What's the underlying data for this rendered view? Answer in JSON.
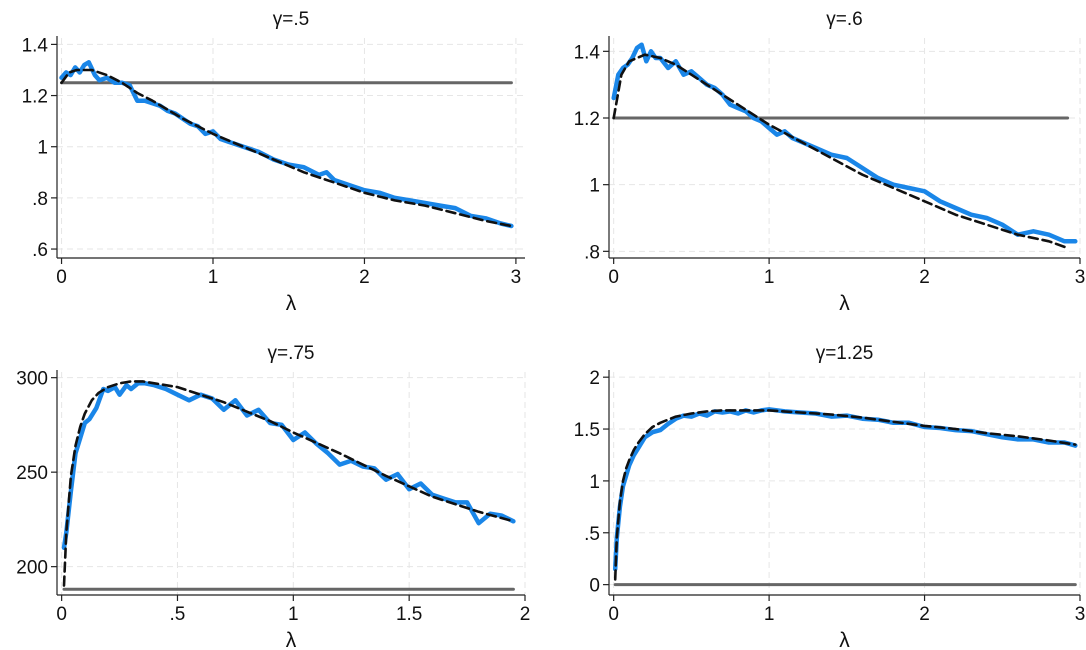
{
  "chart_data": [
    {
      "type": "line",
      "title": "γ=.5",
      "xlabel": "λ",
      "ylabel": "",
      "xlim": [
        -0.03,
        3.06
      ],
      "ylim": [
        0.565,
        1.425
      ],
      "xticks": [
        0,
        1,
        2,
        3
      ],
      "xtick_labels": [
        "0",
        "1",
        "2",
        "3"
      ],
      "yticks": [
        0.6,
        0.8,
        1.0,
        1.2,
        1.4
      ],
      "ytick_labels": [
        ".6",
        ".8",
        "1",
        "1.2",
        "1.4"
      ],
      "grid": true,
      "series": [
        {
          "role": "simulated",
          "color": "#1a86e8",
          "style": "solid",
          "x": [
            0,
            0.03,
            0.06,
            0.09,
            0.12,
            0.15,
            0.18,
            0.22,
            0.25,
            0.3,
            0.35,
            0.4,
            0.45,
            0.5,
            0.55,
            0.6,
            0.65,
            0.7,
            0.75,
            0.8,
            0.85,
            0.9,
            0.95,
            1.0,
            1.05,
            1.1,
            1.2,
            1.3,
            1.4,
            1.5,
            1.6,
            1.7,
            1.75,
            1.8,
            1.9,
            2.0,
            2.1,
            2.2,
            2.3,
            2.4,
            2.5,
            2.6,
            2.7,
            2.8,
            2.9,
            2.97
          ],
          "y": [
            1.27,
            1.29,
            1.28,
            1.31,
            1.29,
            1.32,
            1.33,
            1.28,
            1.26,
            1.27,
            1.25,
            1.25,
            1.24,
            1.18,
            1.18,
            1.17,
            1.16,
            1.14,
            1.13,
            1.11,
            1.09,
            1.08,
            1.05,
            1.06,
            1.03,
            1.02,
            1.0,
            0.98,
            0.95,
            0.93,
            0.92,
            0.89,
            0.9,
            0.87,
            0.85,
            0.83,
            0.82,
            0.8,
            0.79,
            0.78,
            0.77,
            0.76,
            0.73,
            0.72,
            0.7,
            0.69
          ]
        },
        {
          "role": "fit",
          "color": "#111111",
          "style": "dashed",
          "x": [
            0,
            0.05,
            0.1,
            0.15,
            0.2,
            0.3,
            0.4,
            0.5,
            0.6,
            0.8,
            1.0,
            1.2,
            1.4,
            1.6,
            1.8,
            2.0,
            2.2,
            2.4,
            2.6,
            2.8,
            2.97
          ],
          "y": [
            1.25,
            1.29,
            1.3,
            1.3,
            1.3,
            1.28,
            1.25,
            1.21,
            1.18,
            1.11,
            1.05,
            1.0,
            0.95,
            0.9,
            0.86,
            0.82,
            0.79,
            0.77,
            0.74,
            0.71,
            0.69
          ]
        },
        {
          "role": "baseline",
          "color": "#666666",
          "style": "solid",
          "x": [
            0,
            2.97
          ],
          "y": [
            1.25,
            1.25
          ]
        }
      ]
    },
    {
      "type": "line",
      "title": "γ=.6",
      "xlabel": "λ",
      "ylabel": "",
      "xlim": [
        -0.03,
        3.0
      ],
      "ylim": [
        0.78,
        1.44
      ],
      "xticks": [
        0,
        1,
        2,
        3
      ],
      "xtick_labels": [
        "0",
        "1",
        "2",
        "3"
      ],
      "yticks": [
        0.8,
        1.0,
        1.2,
        1.4
      ],
      "ytick_labels": [
        ".8",
        "1",
        "1.2",
        "1.4"
      ],
      "grid": true,
      "series": [
        {
          "role": "simulated",
          "color": "#1a86e8",
          "style": "solid",
          "x": [
            0,
            0.03,
            0.06,
            0.09,
            0.12,
            0.15,
            0.18,
            0.21,
            0.24,
            0.27,
            0.3,
            0.35,
            0.4,
            0.45,
            0.5,
            0.55,
            0.6,
            0.65,
            0.7,
            0.75,
            0.8,
            0.85,
            0.9,
            0.95,
            1.0,
            1.05,
            1.1,
            1.15,
            1.2,
            1.3,
            1.4,
            1.5,
            1.6,
            1.7,
            1.8,
            1.9,
            2.0,
            2.1,
            2.2,
            2.3,
            2.4,
            2.45,
            2.5,
            2.6,
            2.7,
            2.8,
            2.9,
            2.97
          ],
          "y": [
            1.26,
            1.33,
            1.35,
            1.36,
            1.38,
            1.41,
            1.42,
            1.37,
            1.4,
            1.38,
            1.38,
            1.35,
            1.37,
            1.33,
            1.34,
            1.32,
            1.3,
            1.29,
            1.27,
            1.24,
            1.23,
            1.22,
            1.2,
            1.19,
            1.17,
            1.15,
            1.16,
            1.14,
            1.13,
            1.11,
            1.09,
            1.08,
            1.05,
            1.02,
            1.0,
            0.99,
            0.98,
            0.95,
            0.93,
            0.91,
            0.9,
            0.89,
            0.88,
            0.85,
            0.86,
            0.85,
            0.83,
            0.83
          ]
        },
        {
          "role": "fit",
          "color": "#111111",
          "style": "dashed",
          "x": [
            0,
            0.05,
            0.1,
            0.15,
            0.2,
            0.3,
            0.4,
            0.5,
            0.6,
            0.8,
            1.0,
            1.2,
            1.4,
            1.6,
            1.8,
            2.0,
            2.2,
            2.4,
            2.6,
            2.8,
            2.92
          ],
          "y": [
            1.2,
            1.33,
            1.37,
            1.38,
            1.39,
            1.38,
            1.36,
            1.33,
            1.3,
            1.24,
            1.18,
            1.13,
            1.08,
            1.03,
            0.99,
            0.95,
            0.91,
            0.88,
            0.85,
            0.83,
            0.81
          ]
        },
        {
          "role": "baseline",
          "color": "#666666",
          "style": "solid",
          "x": [
            0,
            2.92
          ],
          "y": [
            1.2,
            1.2
          ]
        }
      ]
    },
    {
      "type": "line",
      "title": "γ=.75",
      "xlabel": "λ",
      "ylabel": "",
      "xlim": [
        -0.02,
        2.0
      ],
      "ylim": [
        185,
        303
      ],
      "xticks": [
        0,
        0.5,
        1,
        1.5,
        2
      ],
      "xtick_labels": [
        "0",
        ".5",
        "1",
        "1.5",
        "2"
      ],
      "yticks": [
        200,
        250,
        300
      ],
      "ytick_labels": [
        "200",
        "250",
        "300"
      ],
      "grid": true,
      "series": [
        {
          "role": "simulated",
          "color": "#1a86e8",
          "style": "solid",
          "x": [
            0.01,
            0.02,
            0.04,
            0.06,
            0.08,
            0.1,
            0.12,
            0.15,
            0.18,
            0.2,
            0.23,
            0.25,
            0.28,
            0.3,
            0.33,
            0.36,
            0.4,
            0.45,
            0.5,
            0.55,
            0.6,
            0.65,
            0.7,
            0.75,
            0.8,
            0.85,
            0.9,
            0.95,
            1.0,
            1.05,
            1.1,
            1.15,
            1.2,
            1.25,
            1.3,
            1.35,
            1.4,
            1.45,
            1.5,
            1.55,
            1.6,
            1.65,
            1.7,
            1.75,
            1.8,
            1.85,
            1.9,
            1.95
          ],
          "y": [
            210,
            218,
            240,
            260,
            268,
            276,
            278,
            284,
            294,
            293,
            295,
            291,
            296,
            294,
            297,
            297,
            296,
            294,
            291,
            288,
            291,
            289,
            283,
            288,
            280,
            283,
            276,
            275,
            267,
            271,
            265,
            260,
            254,
            256,
            253,
            252,
            246,
            249,
            241,
            244,
            238,
            236,
            234,
            234,
            223,
            228,
            227,
            224
          ]
        },
        {
          "role": "fit",
          "color": "#111111",
          "style": "dashed",
          "x": [
            0.01,
            0.02,
            0.04,
            0.06,
            0.08,
            0.1,
            0.13,
            0.16,
            0.2,
            0.25,
            0.3,
            0.35,
            0.4,
            0.5,
            0.6,
            0.7,
            0.8,
            0.9,
            1.0,
            1.2,
            1.4,
            1.6,
            1.8,
            1.95
          ],
          "y": [
            190,
            218,
            248,
            264,
            274,
            281,
            288,
            292,
            295,
            297,
            298,
            298,
            297,
            295,
            291,
            287,
            282,
            277,
            271,
            260,
            248,
            237,
            229,
            224
          ]
        },
        {
          "role": "baseline",
          "color": "#666666",
          "style": "solid",
          "x": [
            0.01,
            1.95
          ],
          "y": [
            188,
            188
          ]
        }
      ]
    },
    {
      "type": "line",
      "title": "γ=1.25",
      "xlabel": "λ",
      "ylabel": "",
      "xlim": [
        -0.03,
        3.0
      ],
      "ylim": [
        -0.1,
        2.05
      ],
      "xticks": [
        0,
        1,
        2,
        3
      ],
      "xtick_labels": [
        "0",
        "1",
        "2",
        "3"
      ],
      "yticks": [
        0,
        0.5,
        1,
        1.5,
        2
      ],
      "ytick_labels": [
        "0",
        ".5",
        "1",
        "1.5",
        "2"
      ],
      "grid": true,
      "series": [
        {
          "role": "simulated",
          "color": "#1a86e8",
          "style": "solid",
          "x": [
            0.01,
            0.02,
            0.04,
            0.06,
            0.08,
            0.1,
            0.13,
            0.16,
            0.2,
            0.25,
            0.3,
            0.35,
            0.4,
            0.45,
            0.5,
            0.55,
            0.6,
            0.65,
            0.7,
            0.75,
            0.8,
            0.85,
            0.9,
            0.95,
            1.0,
            1.1,
            1.2,
            1.3,
            1.4,
            1.5,
            1.6,
            1.7,
            1.8,
            1.9,
            2.0,
            2.1,
            2.2,
            2.3,
            2.4,
            2.5,
            2.6,
            2.7,
            2.8,
            2.9,
            2.97
          ],
          "y": [
            0.15,
            0.45,
            0.75,
            0.95,
            1.05,
            1.15,
            1.25,
            1.32,
            1.42,
            1.47,
            1.49,
            1.55,
            1.6,
            1.63,
            1.62,
            1.65,
            1.63,
            1.67,
            1.66,
            1.67,
            1.65,
            1.68,
            1.66,
            1.68,
            1.69,
            1.67,
            1.66,
            1.65,
            1.62,
            1.63,
            1.6,
            1.59,
            1.56,
            1.56,
            1.52,
            1.51,
            1.49,
            1.48,
            1.45,
            1.42,
            1.4,
            1.4,
            1.37,
            1.37,
            1.34
          ]
        },
        {
          "role": "fit",
          "color": "#111111",
          "style": "dashed",
          "x": [
            0.01,
            0.02,
            0.04,
            0.06,
            0.08,
            0.1,
            0.13,
            0.16,
            0.2,
            0.25,
            0.3,
            0.4,
            0.5,
            0.6,
            0.7,
            0.8,
            0.9,
            1.0,
            1.2,
            1.4,
            1.6,
            1.8,
            2.0,
            2.2,
            2.4,
            2.6,
            2.8,
            2.97
          ],
          "y": [
            0.05,
            0.45,
            0.8,
            1.0,
            1.12,
            1.2,
            1.3,
            1.37,
            1.45,
            1.52,
            1.56,
            1.62,
            1.65,
            1.67,
            1.68,
            1.68,
            1.68,
            1.68,
            1.66,
            1.64,
            1.61,
            1.57,
            1.53,
            1.5,
            1.46,
            1.43,
            1.39,
            1.35
          ]
        },
        {
          "role": "baseline",
          "color": "#666666",
          "style": "solid",
          "x": [
            0.01,
            2.97
          ],
          "y": [
            0,
            0
          ]
        }
      ]
    }
  ]
}
